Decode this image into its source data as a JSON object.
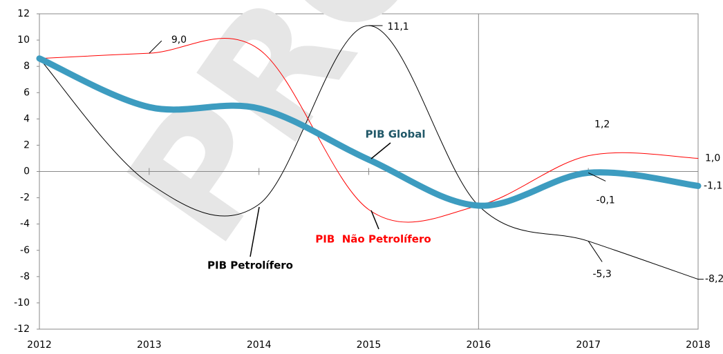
{
  "chart_data": {
    "type": "line",
    "watermark": "PROF",
    "x": [
      2012,
      2013,
      2014,
      2015,
      2016,
      2017,
      2018
    ],
    "xlim": [
      2012,
      2018
    ],
    "xticks": [
      2012,
      2013,
      2014,
      2015,
      2016,
      2017,
      2018
    ],
    "ylim": [
      -12,
      12
    ],
    "yticks": [
      -12,
      -10,
      -8,
      -6,
      -4,
      -2,
      0,
      2,
      4,
      6,
      8,
      10,
      12
    ],
    "vline": 2016,
    "series": [
      {
        "name": "PIB Petrolífero",
        "color": "#000000",
        "width": 1,
        "values": [
          8.6,
          -0.9,
          -2.5,
          11.1,
          -2.6,
          -5.3,
          -8.2
        ],
        "value_labels": [
          null,
          null,
          null,
          "11,1",
          null,
          "-5,3",
          "-8,2"
        ]
      },
      {
        "name": "PIB  Não Petrolífero",
        "color": "#ff0000",
        "width": 1,
        "values": [
          8.6,
          9.0,
          9.3,
          -2.9,
          -2.6,
          1.2,
          1.0
        ],
        "value_labels": [
          null,
          "9,0",
          null,
          null,
          null,
          "1,2",
          "1,0"
        ]
      },
      {
        "name": "PIB Global",
        "color": "#3d9cc0",
        "width": 9,
        "values": [
          8.6,
          4.9,
          4.8,
          0.9,
          -2.6,
          -0.1,
          -1.1
        ],
        "value_labels": [
          null,
          null,
          null,
          null,
          null,
          "-0,1",
          "-1,1"
        ]
      }
    ]
  }
}
